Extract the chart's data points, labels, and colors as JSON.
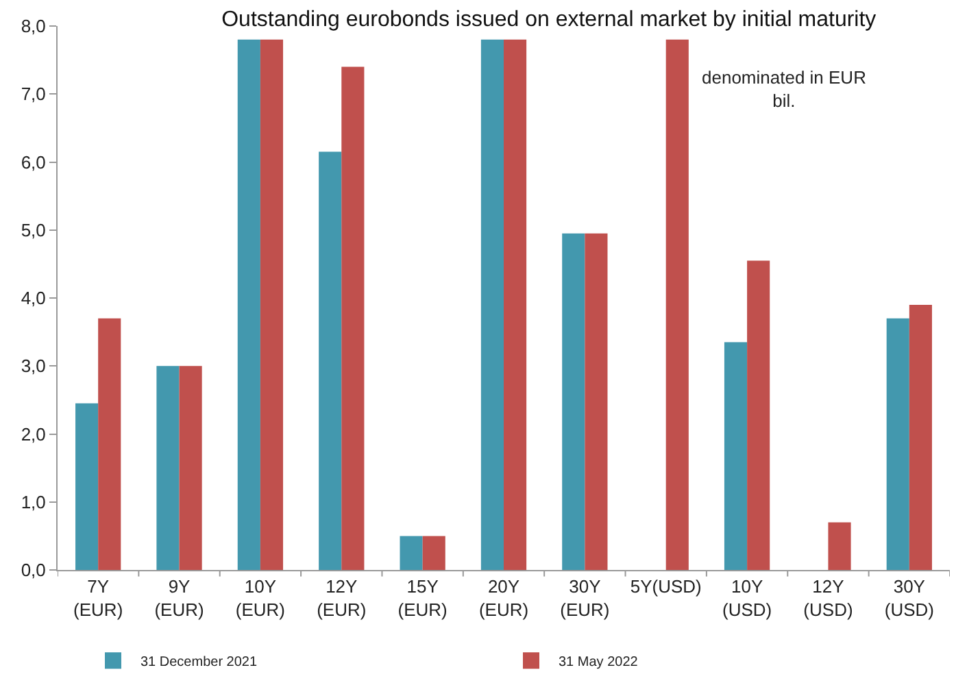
{
  "chart_data": {
    "type": "bar",
    "title": "Outstanding eurobonds issued on external market by initial maturity",
    "categories": [
      "7Y\n(EUR)",
      "9Y\n(EUR)",
      "10Y\n(EUR)",
      "12Y\n(EUR)",
      "15Y\n(EUR)",
      "20Y\n(EUR)",
      "30Y\n(EUR)",
      "5Y(USD)",
      "10Y\n(USD)",
      "12Y\n(USD)",
      "30Y\n(USD)"
    ],
    "series": [
      {
        "name": "31 December 2021",
        "color": "#4398ae",
        "values": [
          2.45,
          3.0,
          7.8,
          6.15,
          0.5,
          7.8,
          4.95,
          null,
          3.35,
          null,
          3.7
        ]
      },
      {
        "name": "31 May 2022",
        "color": "#c0504d",
        "values": [
          3.7,
          3.0,
          7.8,
          7.4,
          0.5,
          7.8,
          4.95,
          7.8,
          4.55,
          0.7,
          3.9
        ]
      }
    ],
    "ylim": [
      0,
      8
    ],
    "yticks": [
      {
        "value": 0,
        "label": "0,0"
      },
      {
        "value": 1,
        "label": "1,0"
      },
      {
        "value": 2,
        "label": "2,0"
      },
      {
        "value": 3,
        "label": "3,0"
      },
      {
        "value": 4,
        "label": "4,0"
      },
      {
        "value": 5,
        "label": "5,0"
      },
      {
        "value": 6,
        "label": "6,0"
      },
      {
        "value": 7,
        "label": "7,0"
      },
      {
        "value": 8,
        "label": "8,0"
      }
    ],
    "annotations": [
      "denominated in EUR\nbil."
    ],
    "legend": "bottom"
  }
}
